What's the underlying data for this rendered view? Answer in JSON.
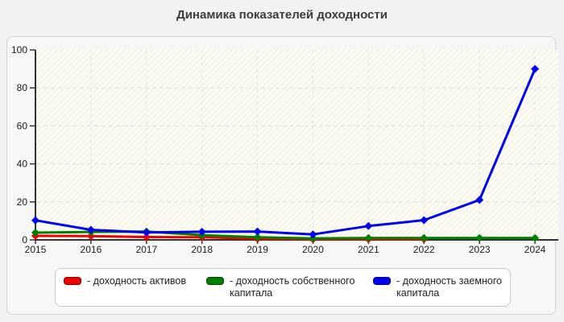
{
  "page": {
    "title": "Динамика показателей доходности"
  },
  "legend": {
    "items": [
      {
        "label": "- доходность активов"
      },
      {
        "label": "- доходность собственного капитала"
      },
      {
        "label": "- доходность заемного капитала"
      }
    ]
  },
  "chart_data": {
    "type": "line",
    "title": "Динамика показателей доходности",
    "categories": [
      "2015",
      "2016",
      "2017",
      "2018",
      "2019",
      "2020",
      "2021",
      "2022",
      "2023",
      "2024"
    ],
    "series": [
      {
        "name": "доходность активов",
        "color": "#ee0000",
        "values": [
          2.1,
          2.0,
          1.5,
          1.4,
          0.6,
          0.3,
          0.4,
          0.4,
          null,
          null
        ]
      },
      {
        "name": "доходность собственного капитала",
        "color": "#008000",
        "values": [
          3.8,
          4.2,
          4.4,
          2.5,
          1.4,
          0.8,
          1.0,
          1.0,
          1.0,
          1.0
        ]
      },
      {
        "name": "доходность заемного капитала",
        "color": "#0000ee",
        "values": [
          10.3,
          5.3,
          3.9,
          4.3,
          4.4,
          2.9,
          7.3,
          10.4,
          21.0,
          90.0
        ]
      }
    ],
    "xlabel": "",
    "ylabel": "",
    "ylim": [
      0,
      100
    ],
    "yticks": [
      0,
      20,
      40,
      60,
      80,
      100
    ],
    "grid": "dashed",
    "legend_position": "bottom",
    "marker": "diamond"
  }
}
